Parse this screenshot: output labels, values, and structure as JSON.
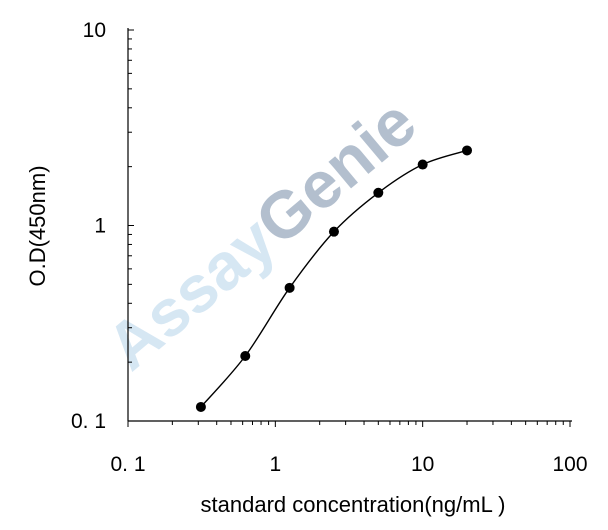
{
  "chart_data": {
    "type": "line",
    "title": "",
    "xlabel": "standard concentration(ng/mL )",
    "ylabel": "O.D(450nm)",
    "xscale": "log",
    "yscale": "log",
    "xlim": [
      0.1,
      100
    ],
    "ylim": [
      0.1,
      10
    ],
    "xticks": [
      0.1,
      1,
      10,
      100
    ],
    "xtick_labels": [
      "0. 1",
      "1",
      "10",
      "100"
    ],
    "yticks": [
      0.1,
      1,
      10
    ],
    "ytick_labels": [
      "0. 1",
      "1",
      "10"
    ],
    "grid": false,
    "legend": "none",
    "series": [
      {
        "x": [
          0.3125,
          0.625,
          1.25,
          2.5,
          5,
          10,
          20
        ],
        "y": [
          0.118,
          0.215,
          0.48,
          0.93,
          1.47,
          2.05,
          2.42
        ],
        "marker": "circle",
        "fit": "smooth-curve",
        "color": "#000000"
      }
    ]
  },
  "watermark": {
    "part1": "Assay",
    "part2": "Genie",
    "color1": "#cfe3f2",
    "color2": "#a6b5c6"
  }
}
